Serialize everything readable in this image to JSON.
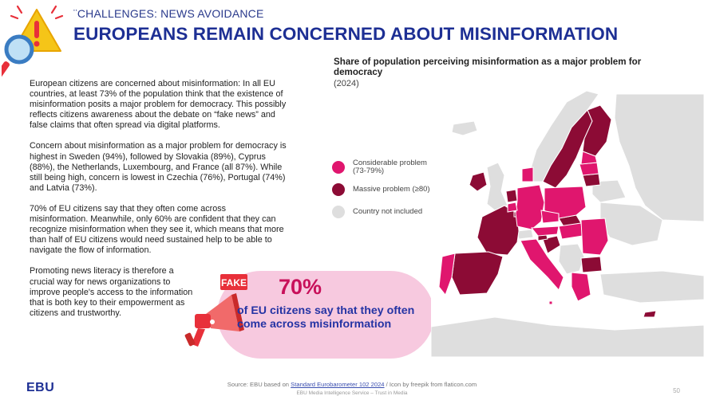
{
  "header": {
    "section_label": "¨CHALLENGES: NEWS AVOIDANCE",
    "title": "EUROPEANS REMAIN CONCERNED ABOUT MISINFORMATION"
  },
  "body": {
    "paragraphs": [
      "European citizens are concerned about misinformation: In all EU countries, at least 73% of the population think that the existence of misinformation posits a major problem for democracy. This possibly reflects citizens awareness about the debate on “fake news” and false claims that often spread via digital platforms.",
      "Concern about misinformation as a major problem for democracy is highest in Sweden (94%), followed by Slovakia (89%), Cyprus (88%), the Netherlands, Luxembourg, and France (all 87%). While still being high, concern is lowest in Czechia (76%), Portugal (74%) and Latvia (73%).",
      "70% of EU citizens say that they often come across misinformation. Meanwhile, only 60% are confident that they can recognize misinformation when they see it, which means that more than half of EU citizens would need sustained help to be able to navigate the flow of information.",
      "Promoting news literacy is therefore a crucial way for news organizations to improve people's access to the information that is both key to their empowerment as citizens and trustworthy."
    ]
  },
  "callout": {
    "badge": "FAKE",
    "number": "70%",
    "text": "of EU citizens say that they often come across misinformation"
  },
  "map": {
    "title": "Share of population perceiving misinformation as a major problem for democracy",
    "year": "(2024)",
    "legend": [
      {
        "label": "Considerable problem (73-79%)",
        "color": "#e0166e"
      },
      {
        "label": "Massive problem (≥80)",
        "color": "#8c0b35"
      },
      {
        "label": "Country not included",
        "color": "#dedede"
      }
    ],
    "colors": {
      "considerable": "#e0166e",
      "massive": "#8c0b35",
      "excluded": "#dedede",
      "sea": "#ffffff"
    }
  },
  "footer": {
    "source_prefix": "Source: EBU based on",
    "source_link": "Standard Eurobarometer 102 2024",
    "source_suffix": "/ Icon by freepik from flaticon.com",
    "sub": "EBU Media Intelligence Service – Trust in Media",
    "logo": "EBU",
    "page": "50"
  }
}
